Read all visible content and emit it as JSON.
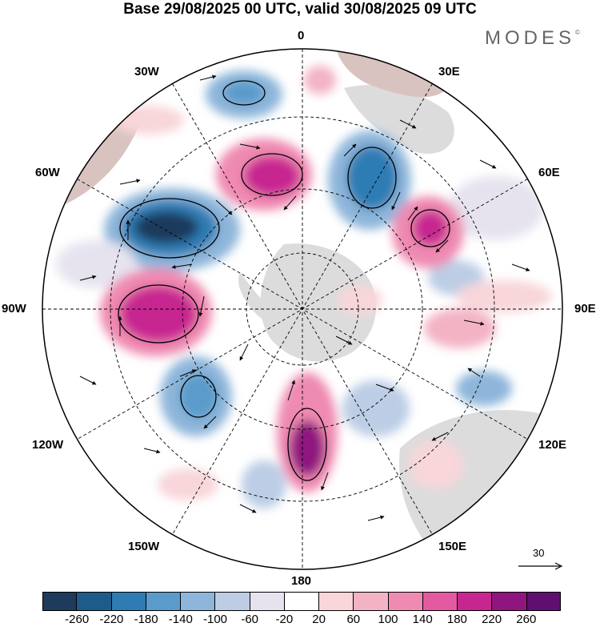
{
  "title": "Base 29/08/2025 00 UTC, valid 30/08/2025 09 UTC",
  "brand": "MODES",
  "brand_mark": "©",
  "longitude_labels": {
    "lon_0": "0",
    "lon_30e": "30E",
    "lon_60e": "60E",
    "lon_90e": "90E",
    "lon_120e": "120E",
    "lon_150e": "150E",
    "lon_180": "180",
    "lon_150w": "150W",
    "lon_120w": "120W",
    "lon_90w": "90W",
    "lon_60w": "60W",
    "lon_30w": "30W"
  },
  "reference_vector": {
    "label": "30"
  },
  "colorbar": {
    "colors": [
      "#1e3b5b",
      "#1d5c8a",
      "#2f7bb4",
      "#5a9bcb",
      "#8eb6da",
      "#bccde5",
      "#e6e3ef",
      "#ffffff",
      "#f8d6da",
      "#f3b3c4",
      "#ef8ab1",
      "#e45aa0",
      "#c72690",
      "#90157f",
      "#5e0f70"
    ],
    "ticks": [
      "-260",
      "-220",
      "-180",
      "-140",
      "-100",
      "-60",
      "-20",
      "20",
      "60",
      "100",
      "140",
      "180",
      "220",
      "260"
    ]
  },
  "palette": {
    "land": "#dcdcdc",
    "land_tinted": "#d9c3c0"
  }
}
